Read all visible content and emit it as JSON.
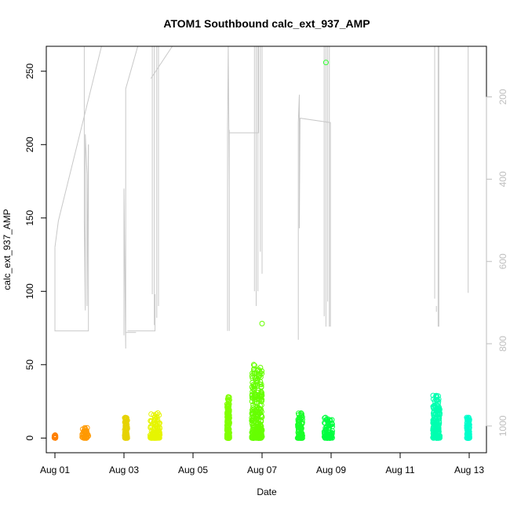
{
  "chart_data": {
    "type": "scatter",
    "title": "ATOM1 Southbound calc_ext_937_AMP",
    "xlabel": "Date",
    "ylabel": "calc_ext_937_AMP",
    "x_tick_labels": [
      "Aug 01",
      "Aug 03",
      "Aug 05",
      "Aug 07",
      "Aug 09",
      "Aug 11",
      "Aug 13"
    ],
    "x_tick_values": [
      1,
      3,
      5,
      7,
      9,
      11,
      13
    ],
    "xlim": [
      0.75,
      13.5
    ],
    "y_tick_labels": [
      "0",
      "50",
      "100",
      "150",
      "200",
      "250"
    ],
    "y_tick_values": [
      0,
      50,
      100,
      150,
      200,
      250
    ],
    "ylim": [
      -10,
      267
    ],
    "y2_tick_labels": [
      "200",
      "400",
      "600",
      "800",
      "1000"
    ],
    "y2_tick_values": [
      200,
      400,
      600,
      800,
      1000
    ],
    "y2lim": [
      1065,
      77
    ],
    "grid": false,
    "line_color": "#c8c8c8",
    "point_clusters": [
      {
        "day": 1.0,
        "x_spread": 0.04,
        "max": 2,
        "color": "#ff8000"
      },
      {
        "day": 1.88,
        "x_spread": 0.18,
        "max": 7,
        "color": "#ff9900"
      },
      {
        "day": 3.06,
        "x_spread": 0.08,
        "max": 14,
        "color": "#e6d200"
      },
      {
        "day": 3.9,
        "x_spread": 0.28,
        "max": 17,
        "color": "#e6f500"
      },
      {
        "day": 6.02,
        "x_spread": 0.07,
        "max": 28,
        "color": "#80ff00"
      },
      {
        "day": 6.85,
        "x_spread": 0.3,
        "max": 50,
        "color": "#66ff00"
      },
      {
        "day": 8.1,
        "x_spread": 0.14,
        "max": 17,
        "color": "#1aff2a"
      },
      {
        "day": 8.92,
        "x_spread": 0.24,
        "max": 14,
        "color": "#00ff40"
      },
      {
        "day": 12.05,
        "x_spread": 0.2,
        "max": 29,
        "color": "#00ffb0"
      },
      {
        "day": 12.97,
        "x_spread": 0.08,
        "max": 14,
        "color": "#00ffcc"
      }
    ],
    "outlier_points": [
      {
        "x": 8.85,
        "y": 256,
        "color": "#33ff33"
      },
      {
        "x": 7.0,
        "y": 78,
        "color": "#66ff00"
      }
    ],
    "line_segments": [
      [
        [
          1.0,
          130
        ],
        [
          1.0,
          73
        ],
        [
          1.97,
          73
        ],
        [
          1.97,
          200
        ]
      ],
      [
        [
          1.0,
          130
        ],
        [
          1.1,
          148
        ],
        [
          2.35,
          267
        ]
      ],
      [
        [
          1.85,
          267
        ],
        [
          1.85,
          148
        ],
        [
          1.88,
          87
        ],
        [
          1.88,
          207
        ],
        [
          1.93,
          180
        ],
        [
          1.93,
          90
        ],
        [
          1.97,
          200
        ]
      ],
      [
        [
          3.0,
          70
        ],
        [
          3.0,
          170
        ],
        [
          3.05,
          61
        ],
        [
          3.05,
          238
        ],
        [
          3.4,
          267
        ]
      ],
      [
        [
          3.05,
          72
        ],
        [
          3.35,
          72
        ]
      ],
      [
        [
          3.1,
          73
        ],
        [
          3.4,
          73
        ],
        [
          3.9,
          73
        ],
        [
          3.9,
          98
        ]
      ],
      [
        [
          3.82,
          267
        ],
        [
          3.82,
          98
        ]
      ],
      [
        [
          3.88,
          267
        ],
        [
          3.88,
          77
        ]
      ],
      [
        [
          3.95,
          267
        ],
        [
          3.95,
          82
        ]
      ],
      [
        [
          4.0,
          267
        ],
        [
          4.0,
          90
        ]
      ],
      [
        [
          3.78,
          245
        ],
        [
          4.4,
          267
        ]
      ],
      [
        [
          6.0,
          73
        ],
        [
          6.0,
          208
        ],
        [
          6.02,
          267
        ],
        [
          6.05,
          170
        ],
        [
          6.05,
          210
        ],
        [
          6.05,
          73
        ]
      ],
      [
        [
          6.05,
          208
        ],
        [
          6.9,
          208
        ],
        [
          6.9,
          267
        ]
      ],
      [
        [
          6.78,
          267
        ],
        [
          6.78,
          100
        ]
      ],
      [
        [
          6.83,
          267
        ],
        [
          6.83,
          90
        ]
      ],
      [
        [
          6.88,
          267
        ],
        [
          6.88,
          100
        ]
      ],
      [
        [
          6.95,
          267
        ],
        [
          6.95,
          127
        ]
      ],
      [
        [
          7.0,
          267
        ],
        [
          7.0,
          112
        ]
      ],
      [
        [
          8.05,
          67
        ],
        [
          8.05,
          215
        ],
        [
          8.08,
          234
        ],
        [
          8.08,
          143
        ],
        [
          8.1,
          218
        ],
        [
          8.98,
          215
        ],
        [
          8.98,
          76
        ]
      ],
      [
        [
          8.8,
          267
        ],
        [
          8.8,
          83
        ]
      ],
      [
        [
          8.85,
          267
        ],
        [
          8.85,
          76
        ]
      ],
      [
        [
          8.9,
          267
        ],
        [
          8.9,
          93
        ]
      ],
      [
        [
          8.95,
          267
        ],
        [
          8.95,
          76
        ]
      ],
      [
        [
          12.0,
          267
        ],
        [
          12.0,
          95
        ]
      ],
      [
        [
          12.05,
          90
        ],
        [
          12.05,
          86
        ]
      ],
      [
        [
          12.1,
          267
        ],
        [
          12.1,
          76
        ]
      ],
      [
        [
          12.12,
          267
        ],
        [
          12.12,
          76
        ]
      ],
      [
        [
          12.97,
          267
        ],
        [
          12.97,
          99
        ]
      ]
    ]
  }
}
